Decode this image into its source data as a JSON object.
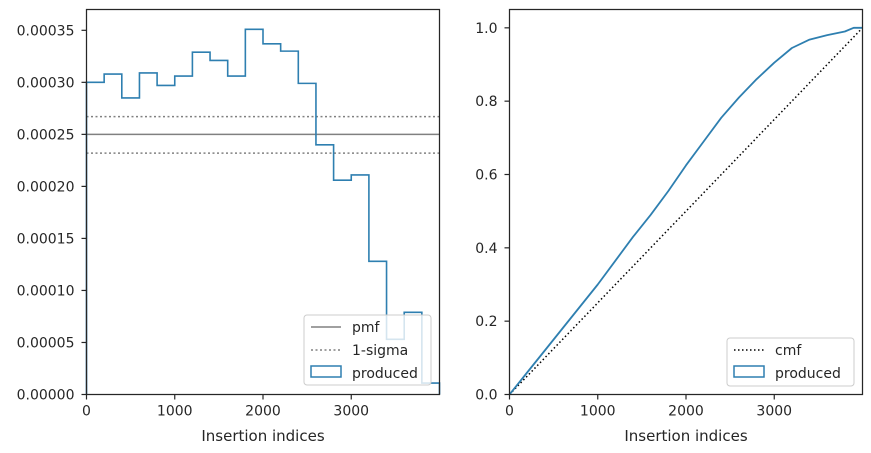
{
  "chart_data": [
    {
      "type": "line",
      "xlabel": "Insertion indices",
      "ylabel": "",
      "xlim": [
        0,
        4000
      ],
      "ylim": [
        0,
        0.00037
      ],
      "xticks": [
        0,
        1000,
        2000,
        3000
      ],
      "xtick_labels": [
        "0",
        "1000",
        "2000",
        "3000"
      ],
      "yticks": [
        0,
        5e-05,
        0.0001,
        0.00015,
        0.0002,
        0.00025,
        0.0003,
        0.00035
      ],
      "ytick_labels": [
        "0.00000",
        "0.00005",
        "0.00010",
        "0.00015",
        "0.00020",
        "0.00025",
        "0.00030",
        "0.00035"
      ],
      "grid": false,
      "legend_position": "lower-right",
      "legend": [
        {
          "label": "pmf",
          "style": "solid",
          "color": "#808080"
        },
        {
          "label": "1-sigma",
          "style": "dotted",
          "color": "#808080"
        },
        {
          "label": "produced",
          "style": "histogram-step",
          "color": "#2e7fb0"
        }
      ],
      "pmf": 0.00025,
      "sigma_band": [
        0.000232,
        0.000267
      ],
      "histogram": {
        "name": "produced",
        "bin_edges": [
          0,
          200,
          400,
          600,
          800,
          1000,
          1200,
          1400,
          1600,
          1800,
          2000,
          2200,
          2400,
          2600,
          2800,
          3000,
          3200,
          3400,
          3600,
          3800,
          4000
        ],
        "values": [
          0.0003,
          0.000308,
          0.000285,
          0.000309,
          0.000297,
          0.000306,
          0.000329,
          0.000321,
          0.000306,
          0.000351,
          0.000337,
          0.00033,
          0.000299,
          0.00024,
          0.000206,
          0.000211,
          0.000128,
          5.3e-05,
          7.9e-05,
          1.1e-05
        ]
      }
    },
    {
      "type": "line",
      "xlabel": "Insertion indices",
      "ylabel": "",
      "xlim": [
        0,
        4000
      ],
      "ylim": [
        0,
        1.05
      ],
      "xticks": [
        0,
        1000,
        2000,
        3000
      ],
      "xtick_labels": [
        "0",
        "1000",
        "2000",
        "3000"
      ],
      "yticks": [
        0,
        0.2,
        0.4,
        0.6,
        0.8,
        1.0
      ],
      "ytick_labels": [
        "0.0",
        "0.2",
        "0.4",
        "0.6",
        "0.8",
        "1.0"
      ],
      "grid": false,
      "legend_position": "lower-right",
      "legend": [
        {
          "label": "cmf",
          "style": "dotted",
          "color": "#000000"
        },
        {
          "label": "produced",
          "style": "histogram-step",
          "color": "#2e7fb0"
        }
      ],
      "cmf": {
        "x": [
          0,
          4000
        ],
        "y": [
          0,
          1.0
        ]
      },
      "series": [
        {
          "name": "produced",
          "x": [
            0,
            200,
            400,
            600,
            800,
            1000,
            1200,
            1400,
            1600,
            1800,
            2000,
            2200,
            2400,
            2600,
            2800,
            3000,
            3200,
            3400,
            3600,
            3800,
            3900,
            4000
          ],
          "y": [
            0,
            0.06,
            0.12,
            0.18,
            0.24,
            0.3,
            0.365,
            0.43,
            0.49,
            0.555,
            0.625,
            0.69,
            0.755,
            0.81,
            0.86,
            0.905,
            0.945,
            0.968,
            0.98,
            0.99,
            1.0,
            1.0
          ]
        }
      ]
    }
  ]
}
